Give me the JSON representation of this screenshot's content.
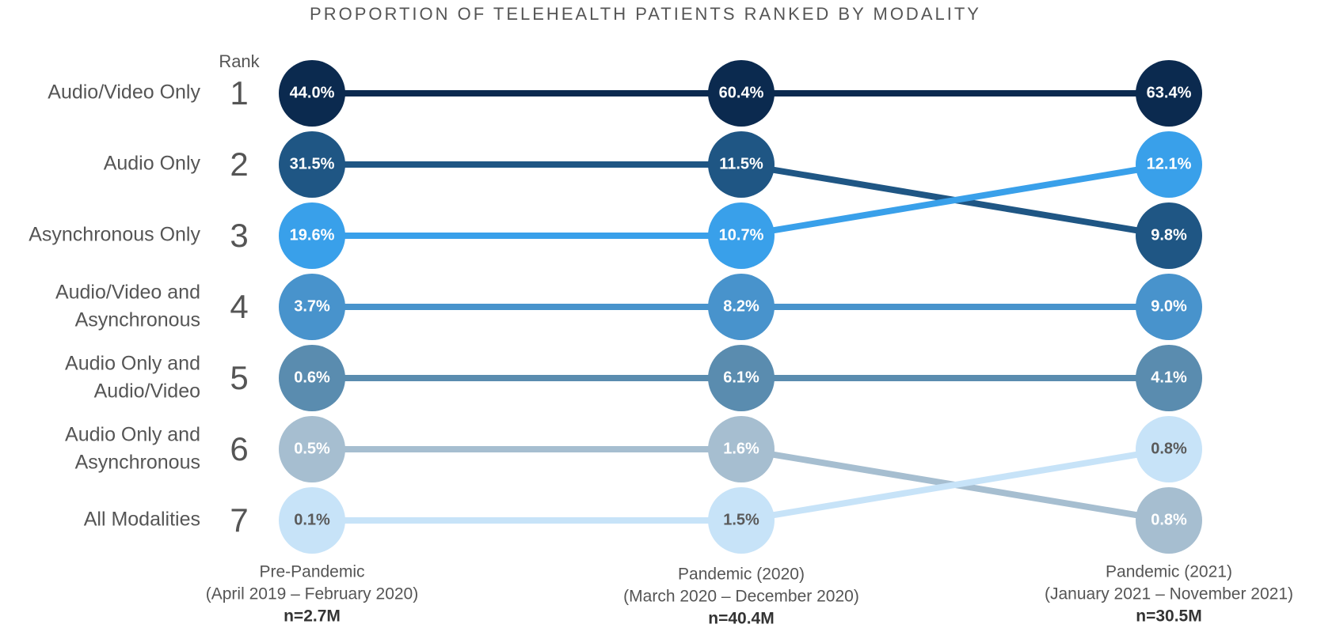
{
  "chart_data": {
    "type": "bump",
    "title": "PROPORTION OF TELEHEALTH PATIENTS RANKED BY MODALITY",
    "rank_label": "Rank",
    "rank_ticks": [
      1,
      2,
      3,
      4,
      5,
      6,
      7
    ],
    "categories": [
      {
        "name": "Pre-Pandemic",
        "range": "(April 2019 – February 2020)",
        "n": "n=2.7M"
      },
      {
        "name": "Pandemic (2020)",
        "range": "(March 2020 – December 2020)",
        "n": "n=40.4M"
      },
      {
        "name": "Pandemic (2021)",
        "range": "(January 2021 – November 2021)",
        "n": "n=30.5M"
      }
    ],
    "series": [
      {
        "name": "Audio/Video Only",
        "color": "#0b2a4f",
        "label_color": "#ffffff",
        "ranks": [
          1,
          1,
          1
        ],
        "values": [
          44.0,
          60.4,
          63.4
        ],
        "value_labels": [
          "44.0%",
          "60.4%",
          "63.4%"
        ]
      },
      {
        "name": "Audio Only",
        "color": "#1f5684",
        "label_color": "#ffffff",
        "ranks": [
          2,
          2,
          3
        ],
        "values": [
          31.5,
          11.5,
          9.8
        ],
        "value_labels": [
          "31.5%",
          "11.5%",
          "9.8%"
        ]
      },
      {
        "name": "Asynchronous Only",
        "color": "#39a0ea",
        "label_color": "#ffffff",
        "ranks": [
          3,
          3,
          2
        ],
        "values": [
          19.6,
          10.7,
          12.1
        ],
        "value_labels": [
          "19.6%",
          "10.7%",
          "12.1%"
        ]
      },
      {
        "name": "Audio/Video and\nAsynchronous",
        "color": "#4893cc",
        "label_color": "#ffffff",
        "ranks": [
          4,
          4,
          4
        ],
        "values": [
          3.7,
          8.2,
          9.0
        ],
        "value_labels": [
          "3.7%",
          "8.2%",
          "9.0%"
        ]
      },
      {
        "name": "Audio Only and\nAudio/Video",
        "color": "#5a8caf",
        "label_color": "#ffffff",
        "ranks": [
          5,
          5,
          5
        ],
        "values": [
          0.6,
          6.1,
          4.1
        ],
        "value_labels": [
          "0.6%",
          "6.1%",
          "4.1%"
        ]
      },
      {
        "name": "Audio Only and\nAsynchronous",
        "color": "#a6bed0",
        "label_color": "#ffffff",
        "ranks": [
          6,
          6,
          7
        ],
        "values": [
          0.5,
          1.6,
          0.8
        ],
        "value_labels": [
          "0.5%",
          "1.6%",
          "0.8%"
        ]
      },
      {
        "name": "All Modalities",
        "color": "#c7e3f8",
        "label_color": "#5a5a5a",
        "ranks": [
          7,
          7,
          6
        ],
        "values": [
          0.1,
          1.5,
          0.8
        ],
        "value_labels": [
          "0.1%",
          "1.5%",
          "0.8%"
        ]
      }
    ]
  }
}
